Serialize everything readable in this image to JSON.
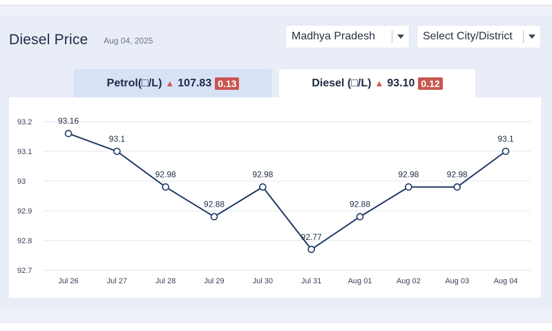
{
  "header": {
    "title": "Diesel Price",
    "date": "Aug 04, 2025"
  },
  "filters": {
    "state": "Madhya Pradesh",
    "city": "Select City/District"
  },
  "tabs": {
    "petrol": {
      "label": "Petrol(□/L)",
      "price": "107.83",
      "change": "0.13"
    },
    "diesel": {
      "label": "Diesel (□/L)",
      "price": "93.10",
      "change": "0.12"
    }
  },
  "colors": {
    "line": "#1f3864",
    "badge": "#c9564f",
    "up_arrow": "#d9534f",
    "active_tab": "#ffffff",
    "inactive_tab": "#d8e2f7"
  },
  "chart_data": {
    "type": "line",
    "categories": [
      "Jul 26",
      "Jul 27",
      "Jul 28",
      "Jul 29",
      "Jul 30",
      "Jul 31",
      "Aug 01",
      "Aug 02",
      "Aug 03",
      "Aug 04"
    ],
    "series": [
      {
        "values": [
          93.16,
          93.1,
          92.98,
          92.88,
          92.98,
          92.77,
          92.88,
          92.98,
          92.98,
          93.1
        ]
      }
    ],
    "data_labels": [
      "93.16",
      "93.1",
      "92.98",
      "92.88",
      "92.98",
      "92.77",
      "92.88",
      "92.98",
      "92.98",
      "93.1"
    ],
    "yticks": [
      "93.2",
      "93.1",
      "93",
      "92.9",
      "92.8",
      "92.7"
    ],
    "ylim": [
      92.7,
      93.2
    ],
    "grid": true,
    "legend": "none"
  }
}
